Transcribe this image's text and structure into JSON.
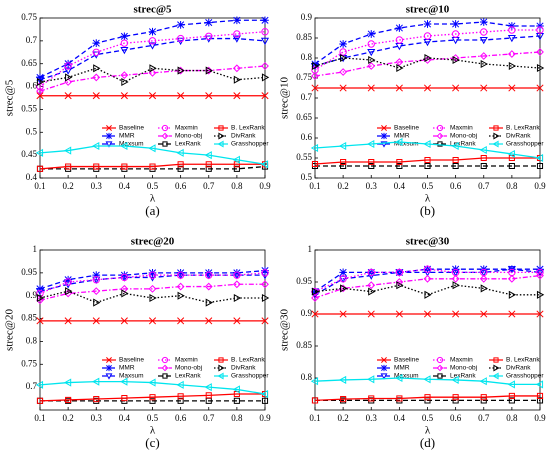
{
  "chart_data": [
    {
      "type": "line",
      "title": "strec@5",
      "ylabel": "strec@5",
      "xlabel": "λ",
      "caption": "(a)",
      "x": [
        0.1,
        0.2,
        0.3,
        0.4,
        0.5,
        0.6,
        0.7,
        0.8,
        0.9
      ],
      "xlim": [
        0.1,
        0.9
      ],
      "xticks": [
        0.1,
        0.2,
        0.3,
        0.4,
        0.5,
        0.6,
        0.7,
        0.8,
        0.9
      ],
      "ylim": [
        0.4,
        0.75
      ],
      "yticks": [
        0.4,
        0.45,
        0.5,
        0.55,
        0.6,
        0.65,
        0.7,
        0.75
      ],
      "grid": false,
      "series": [
        {
          "name": "Baseline",
          "color": "#ff0000",
          "marker": "x",
          "linestyle": "solid",
          "values": [
            0.58,
            0.58,
            0.58,
            0.58,
            0.58,
            0.58,
            0.58,
            0.58,
            0.58
          ]
        },
        {
          "name": "MMR",
          "color": "#0000ff",
          "marker": "star",
          "linestyle": "dashed",
          "values": [
            0.62,
            0.65,
            0.695,
            0.71,
            0.72,
            0.735,
            0.74,
            0.745,
            0.745
          ]
        },
        {
          "name": "Maxsum",
          "color": "#0000ff",
          "marker": "triangle-down",
          "linestyle": "dashed",
          "values": [
            0.615,
            0.635,
            0.67,
            0.68,
            0.69,
            0.7,
            0.705,
            0.705,
            0.7
          ]
        },
        {
          "name": "Maxmin",
          "color": "#ff00ff",
          "marker": "circle",
          "linestyle": "dotted",
          "values": [
            0.6,
            0.645,
            0.675,
            0.695,
            0.7,
            0.705,
            0.71,
            0.715,
            0.72
          ]
        },
        {
          "name": "Mono-obj",
          "color": "#ff00ff",
          "marker": "diamond",
          "linestyle": "dashdot",
          "values": [
            0.59,
            0.61,
            0.62,
            0.625,
            0.63,
            0.635,
            0.635,
            0.64,
            0.645
          ]
        },
        {
          "name": "LexRank",
          "color": "#000000",
          "marker": "square",
          "linestyle": "dashed",
          "values": [
            0.42,
            0.42,
            0.42,
            0.42,
            0.42,
            0.42,
            0.42,
            0.42,
            0.425
          ]
        },
        {
          "name": "B. LexRank",
          "color": "#ff0000",
          "marker": "square",
          "linestyle": "solid",
          "values": [
            0.42,
            0.425,
            0.425,
            0.425,
            0.425,
            0.43,
            0.43,
            0.43,
            0.43
          ]
        },
        {
          "name": "DivRank",
          "color": "#000000",
          "marker": "triangle-right",
          "linestyle": "dotted",
          "values": [
            0.61,
            0.62,
            0.64,
            0.61,
            0.64,
            0.635,
            0.635,
            0.615,
            0.62
          ]
        },
        {
          "name": "Grasshopper",
          "color": "#00e5ee",
          "marker": "triangle-left",
          "linestyle": "solid",
          "values": [
            0.455,
            0.46,
            0.47,
            0.47,
            0.465,
            0.455,
            0.45,
            0.44,
            0.43
          ]
        }
      ]
    },
    {
      "type": "line",
      "title": "strec@10",
      "ylabel": "strec@10",
      "xlabel": "λ",
      "caption": "(b)",
      "x": [
        0.1,
        0.2,
        0.3,
        0.4,
        0.5,
        0.6,
        0.7,
        0.8,
        0.9
      ],
      "xlim": [
        0.1,
        0.9
      ],
      "xticks": [
        0.1,
        0.2,
        0.3,
        0.4,
        0.5,
        0.6,
        0.7,
        0.8,
        0.9
      ],
      "ylim": [
        0.5,
        0.9
      ],
      "yticks": [
        0.5,
        0.55,
        0.6,
        0.65,
        0.7,
        0.75,
        0.8,
        0.85,
        0.9
      ],
      "grid": false,
      "series": [
        {
          "name": "Baseline",
          "color": "#ff0000",
          "marker": "x",
          "linestyle": "solid",
          "values": [
            0.725,
            0.725,
            0.725,
            0.725,
            0.725,
            0.725,
            0.725,
            0.725,
            0.725
          ]
        },
        {
          "name": "MMR",
          "color": "#0000ff",
          "marker": "star",
          "linestyle": "dashed",
          "values": [
            0.785,
            0.835,
            0.86,
            0.875,
            0.885,
            0.885,
            0.89,
            0.88,
            0.88
          ]
        },
        {
          "name": "Maxsum",
          "color": "#0000ff",
          "marker": "triangle-down",
          "linestyle": "dashed",
          "values": [
            0.78,
            0.8,
            0.815,
            0.83,
            0.84,
            0.845,
            0.845,
            0.85,
            0.855
          ]
        },
        {
          "name": "Maxmin",
          "color": "#ff00ff",
          "marker": "circle",
          "linestyle": "dotted",
          "values": [
            0.77,
            0.815,
            0.835,
            0.845,
            0.855,
            0.86,
            0.865,
            0.87,
            0.87
          ]
        },
        {
          "name": "Mono-obj",
          "color": "#ff00ff",
          "marker": "diamond",
          "linestyle": "dashdot",
          "values": [
            0.755,
            0.765,
            0.78,
            0.79,
            0.795,
            0.8,
            0.805,
            0.81,
            0.815
          ]
        },
        {
          "name": "LexRank",
          "color": "#000000",
          "marker": "square",
          "linestyle": "dashed",
          "values": [
            0.53,
            0.53,
            0.53,
            0.53,
            0.53,
            0.53,
            0.53,
            0.53,
            0.53
          ]
        },
        {
          "name": "B. LexRank",
          "color": "#ff0000",
          "marker": "square",
          "linestyle": "solid",
          "values": [
            0.535,
            0.54,
            0.54,
            0.54,
            0.545,
            0.545,
            0.55,
            0.55,
            0.55
          ]
        },
        {
          "name": "DivRank",
          "color": "#000000",
          "marker": "triangle-right",
          "linestyle": "dotted",
          "values": [
            0.78,
            0.8,
            0.795,
            0.775,
            0.8,
            0.795,
            0.785,
            0.78,
            0.775
          ]
        },
        {
          "name": "Grasshopper",
          "color": "#00e5ee",
          "marker": "triangle-left",
          "linestyle": "solid",
          "values": [
            0.575,
            0.58,
            0.585,
            0.59,
            0.585,
            0.58,
            0.57,
            0.56,
            0.55
          ]
        }
      ]
    },
    {
      "type": "line",
      "title": "strec@20",
      "ylabel": "strec@20",
      "xlabel": "λ",
      "caption": "(c)",
      "x": [
        0.1,
        0.2,
        0.3,
        0.4,
        0.5,
        0.6,
        0.7,
        0.8,
        0.9
      ],
      "xlim": [
        0.1,
        0.9
      ],
      "xticks": [
        0.1,
        0.2,
        0.3,
        0.4,
        0.5,
        0.6,
        0.7,
        0.8,
        0.9
      ],
      "ylim": [
        0.65,
        1
      ],
      "yticks": [
        0.7,
        0.75,
        0.8,
        0.85,
        0.9,
        0.95,
        1
      ],
      "grid": false,
      "series": [
        {
          "name": "Baseline",
          "color": "#ff0000",
          "marker": "x",
          "linestyle": "solid",
          "values": [
            0.845,
            0.845,
            0.845,
            0.845,
            0.845,
            0.845,
            0.845,
            0.845,
            0.845
          ]
        },
        {
          "name": "MMR",
          "color": "#0000ff",
          "marker": "star",
          "linestyle": "dashed",
          "values": [
            0.915,
            0.935,
            0.945,
            0.945,
            0.95,
            0.95,
            0.95,
            0.95,
            0.955
          ]
        },
        {
          "name": "Maxsum",
          "color": "#0000ff",
          "marker": "triangle-down",
          "linestyle": "dashed",
          "values": [
            0.91,
            0.925,
            0.935,
            0.94,
            0.94,
            0.945,
            0.945,
            0.945,
            0.945
          ]
        },
        {
          "name": "Maxmin",
          "color": "#ff00ff",
          "marker": "circle",
          "linestyle": "dotted",
          "values": [
            0.905,
            0.93,
            0.935,
            0.94,
            0.945,
            0.945,
            0.945,
            0.945,
            0.95
          ]
        },
        {
          "name": "Mono-obj",
          "color": "#ff00ff",
          "marker": "diamond",
          "linestyle": "dashdot",
          "values": [
            0.89,
            0.905,
            0.91,
            0.915,
            0.915,
            0.92,
            0.92,
            0.925,
            0.925
          ]
        },
        {
          "name": "LexRank",
          "color": "#000000",
          "marker": "square",
          "linestyle": "dashed",
          "values": [
            0.67,
            0.67,
            0.67,
            0.67,
            0.67,
            0.67,
            0.67,
            0.67,
            0.67
          ]
        },
        {
          "name": "B. LexRank",
          "color": "#ff0000",
          "marker": "square",
          "linestyle": "solid",
          "values": [
            0.67,
            0.672,
            0.674,
            0.676,
            0.678,
            0.68,
            0.682,
            0.685,
            0.685
          ]
        },
        {
          "name": "DivRank",
          "color": "#000000",
          "marker": "triangle-right",
          "linestyle": "dotted",
          "values": [
            0.895,
            0.91,
            0.885,
            0.905,
            0.895,
            0.9,
            0.885,
            0.895,
            0.895
          ]
        },
        {
          "name": "Grasshopper",
          "color": "#00e5ee",
          "marker": "triangle-left",
          "linestyle": "solid",
          "values": [
            0.705,
            0.71,
            0.712,
            0.712,
            0.71,
            0.705,
            0.7,
            0.695,
            0.685
          ]
        }
      ]
    },
    {
      "type": "line",
      "title": "strec@30",
      "ylabel": "strec@30",
      "xlabel": "λ",
      "caption": "(d)",
      "x": [
        0.1,
        0.2,
        0.3,
        0.4,
        0.5,
        0.6,
        0.7,
        0.8,
        0.9
      ],
      "xlim": [
        0.1,
        0.9
      ],
      "xticks": [
        0.1,
        0.2,
        0.3,
        0.4,
        0.5,
        0.6,
        0.7,
        0.8,
        0.9
      ],
      "ylim": [
        0.75,
        1
      ],
      "yticks": [
        0.8,
        0.85,
        0.9,
        0.95,
        1
      ],
      "grid": false,
      "series": [
        {
          "name": "Baseline",
          "color": "#ff0000",
          "marker": "x",
          "linestyle": "solid",
          "values": [
            0.9,
            0.9,
            0.9,
            0.9,
            0.9,
            0.9,
            0.9,
            0.9,
            0.9
          ]
        },
        {
          "name": "MMR",
          "color": "#0000ff",
          "marker": "star",
          "linestyle": "dashed",
          "values": [
            0.935,
            0.965,
            0.965,
            0.965,
            0.97,
            0.97,
            0.97,
            0.97,
            0.97
          ]
        },
        {
          "name": "Maxsum",
          "color": "#0000ff",
          "marker": "triangle-down",
          "linestyle": "dashed",
          "values": [
            0.93,
            0.955,
            0.96,
            0.965,
            0.965,
            0.965,
            0.965,
            0.97,
            0.965
          ]
        },
        {
          "name": "Maxmin",
          "color": "#ff00ff",
          "marker": "circle",
          "linestyle": "dotted",
          "values": [
            0.935,
            0.955,
            0.965,
            0.965,
            0.97,
            0.965,
            0.965,
            0.965,
            0.965
          ]
        },
        {
          "name": "Mono-obj",
          "color": "#ff00ff",
          "marker": "diamond",
          "linestyle": "dashdot",
          "values": [
            0.925,
            0.94,
            0.945,
            0.95,
            0.955,
            0.955,
            0.955,
            0.955,
            0.96
          ]
        },
        {
          "name": "LexRank",
          "color": "#000000",
          "marker": "square",
          "linestyle": "dashed",
          "values": [
            0.765,
            0.765,
            0.765,
            0.765,
            0.765,
            0.765,
            0.765,
            0.765,
            0.765
          ]
        },
        {
          "name": "B. LexRank",
          "color": "#ff0000",
          "marker": "square",
          "linestyle": "solid",
          "values": [
            0.765,
            0.767,
            0.768,
            0.768,
            0.77,
            0.77,
            0.77,
            0.772,
            0.772
          ]
        },
        {
          "name": "DivRank",
          "color": "#000000",
          "marker": "triangle-right",
          "linestyle": "dotted",
          "values": [
            0.935,
            0.94,
            0.935,
            0.945,
            0.93,
            0.945,
            0.94,
            0.93,
            0.93
          ]
        },
        {
          "name": "Grasshopper",
          "color": "#00e5ee",
          "marker": "triangle-left",
          "linestyle": "solid",
          "values": [
            0.795,
            0.797,
            0.798,
            0.8,
            0.798,
            0.797,
            0.795,
            0.79,
            0.79
          ]
        }
      ]
    }
  ]
}
